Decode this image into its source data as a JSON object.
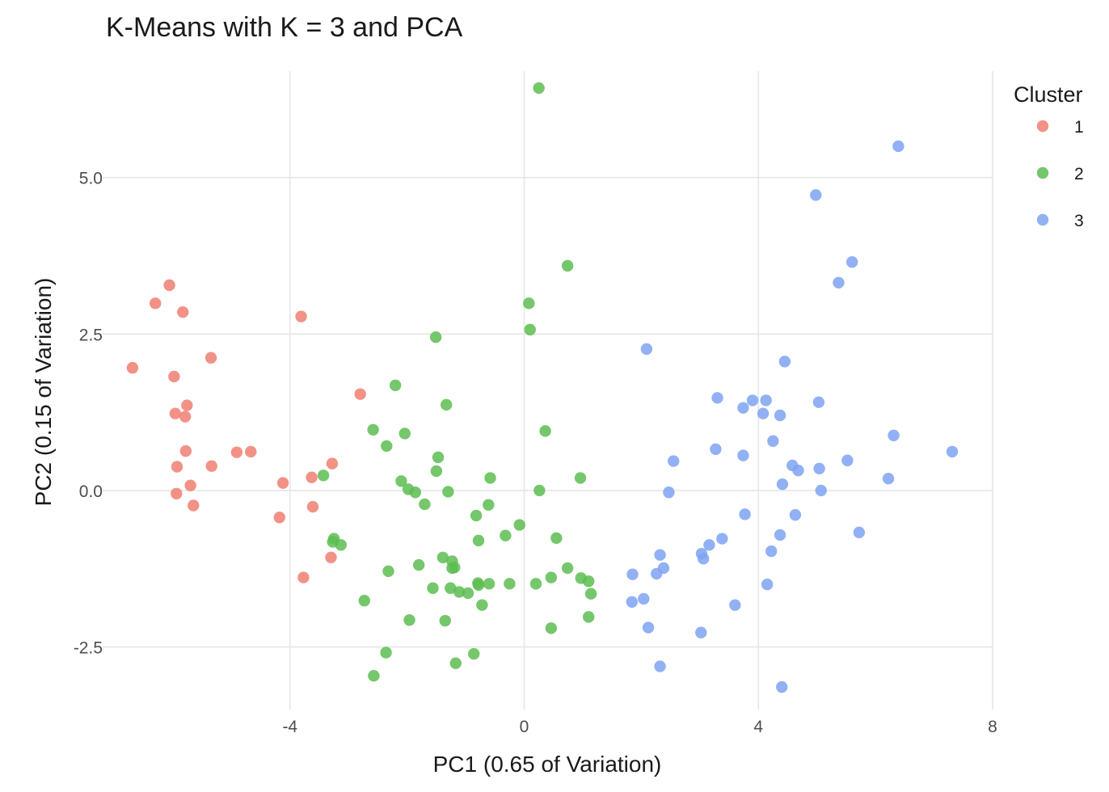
{
  "chart_data": {
    "type": "scatter",
    "title": "K-Means with K = 3 and PCA",
    "xlabel": "PC1 (0.65 of Variation)",
    "ylabel": "PC2 (0.15 of Variation)",
    "xlim": [
      -7.2,
      8.0
    ],
    "ylim": [
      -3.5,
      6.7
    ],
    "x_ticks": [
      -4,
      0,
      4,
      8
    ],
    "x_tick_labels": [
      "-4",
      "0",
      "4",
      "8"
    ],
    "y_ticks": [
      -2.5,
      0.0,
      2.5,
      5.0
    ],
    "y_tick_labels": [
      "-2.5",
      "0.0",
      "2.5",
      "5.0"
    ],
    "grid": true,
    "legend": {
      "title": "Cluster",
      "position": "right"
    },
    "series": [
      {
        "name": "1",
        "color": "#F07F72",
        "points": [
          [
            -6.06,
            3.28
          ],
          [
            -6.3,
            2.99
          ],
          [
            -5.83,
            2.85
          ],
          [
            -3.81,
            2.78
          ],
          [
            -6.69,
            1.96
          ],
          [
            -5.35,
            2.12
          ],
          [
            -5.98,
            1.82
          ],
          [
            -2.8,
            1.54
          ],
          [
            -5.96,
            1.23
          ],
          [
            -5.76,
            1.36
          ],
          [
            -5.79,
            1.18
          ],
          [
            -5.78,
            0.63
          ],
          [
            -4.91,
            0.61
          ],
          [
            -4.67,
            0.62
          ],
          [
            -5.93,
            0.38
          ],
          [
            -5.34,
            0.39
          ],
          [
            -3.28,
            0.43
          ],
          [
            -3.63,
            0.21
          ],
          [
            -4.12,
            0.12
          ],
          [
            -5.7,
            0.08
          ],
          [
            -5.94,
            -0.05
          ],
          [
            -5.65,
            -0.24
          ],
          [
            -3.61,
            -0.26
          ],
          [
            -4.18,
            -0.43
          ],
          [
            -3.3,
            -1.07
          ],
          [
            -3.77,
            -1.39
          ]
        ]
      },
      {
        "name": "2",
        "color": "#5DBD51",
        "points": [
          [
            0.25,
            6.43
          ],
          [
            0.74,
            3.59
          ],
          [
            0.08,
            2.99
          ],
          [
            0.1,
            2.57
          ],
          [
            -1.51,
            2.45
          ],
          [
            -2.2,
            1.68
          ],
          [
            -1.33,
            1.37
          ],
          [
            -2.58,
            0.97
          ],
          [
            -2.04,
            0.91
          ],
          [
            0.36,
            0.95
          ],
          [
            -2.35,
            0.71
          ],
          [
            -1.47,
            0.53
          ],
          [
            -1.5,
            0.31
          ],
          [
            -3.43,
            0.24
          ],
          [
            -0.58,
            0.2
          ],
          [
            0.96,
            0.2
          ],
          [
            -2.1,
            0.15
          ],
          [
            -1.98,
            0.02
          ],
          [
            -1.86,
            -0.03
          ],
          [
            -1.3,
            -0.02
          ],
          [
            0.26,
            0.0
          ],
          [
            -1.7,
            -0.22
          ],
          [
            -0.61,
            -0.23
          ],
          [
            -0.82,
            -0.4
          ],
          [
            -0.08,
            -0.55
          ],
          [
            -0.32,
            -0.72
          ],
          [
            -3.25,
            -0.77
          ],
          [
            -3.27,
            -0.82
          ],
          [
            -3.13,
            -0.87
          ],
          [
            -0.78,
            -0.8
          ],
          [
            0.55,
            -0.76
          ],
          [
            -1.39,
            -1.07
          ],
          [
            -1.23,
            -1.13
          ],
          [
            -1.8,
            -1.19
          ],
          [
            -1.19,
            -1.23
          ],
          [
            -1.23,
            -1.24
          ],
          [
            0.74,
            -1.24
          ],
          [
            -2.32,
            -1.29
          ],
          [
            0.46,
            -1.39
          ],
          [
            0.97,
            -1.4
          ],
          [
            1.1,
            -1.45
          ],
          [
            -0.79,
            -1.48
          ],
          [
            -0.25,
            -1.49
          ],
          [
            0.2,
            -1.49
          ],
          [
            -0.6,
            -1.49
          ],
          [
            -0.78,
            -1.51
          ],
          [
            -1.56,
            -1.56
          ],
          [
            -1.26,
            -1.56
          ],
          [
            -1.11,
            -1.62
          ],
          [
            -0.96,
            -1.64
          ],
          [
            1.14,
            -1.65
          ],
          [
            -2.73,
            -1.76
          ],
          [
            -0.72,
            -1.83
          ],
          [
            1.1,
            -2.02
          ],
          [
            -1.96,
            -2.07
          ],
          [
            -1.35,
            -2.08
          ],
          [
            0.46,
            -2.2
          ],
          [
            -2.36,
            -2.59
          ],
          [
            -0.86,
            -2.61
          ],
          [
            -1.17,
            -2.76
          ],
          [
            -2.57,
            -2.96
          ]
        ]
      },
      {
        "name": "3",
        "color": "#7FA3F2",
        "points": [
          [
            6.39,
            5.5
          ],
          [
            4.98,
            4.72
          ],
          [
            5.6,
            3.65
          ],
          [
            5.37,
            3.32
          ],
          [
            2.09,
            2.26
          ],
          [
            4.45,
            2.06
          ],
          [
            3.3,
            1.48
          ],
          [
            3.9,
            1.44
          ],
          [
            4.13,
            1.44
          ],
          [
            5.03,
            1.41
          ],
          [
            3.74,
            1.32
          ],
          [
            4.08,
            1.23
          ],
          [
            4.37,
            1.2
          ],
          [
            6.31,
            0.88
          ],
          [
            4.25,
            0.79
          ],
          [
            3.27,
            0.66
          ],
          [
            3.74,
            0.56
          ],
          [
            7.31,
            0.62
          ],
          [
            2.55,
            0.47
          ],
          [
            5.52,
            0.48
          ],
          [
            4.58,
            0.4
          ],
          [
            4.68,
            0.32
          ],
          [
            5.04,
            0.35
          ],
          [
            6.22,
            0.19
          ],
          [
            4.41,
            0.1
          ],
          [
            2.47,
            -0.03
          ],
          [
            5.07,
            0.0
          ],
          [
            3.77,
            -0.38
          ],
          [
            4.63,
            -0.39
          ],
          [
            5.72,
            -0.67
          ],
          [
            4.37,
            -0.71
          ],
          [
            3.38,
            -0.77
          ],
          [
            3.16,
            -0.87
          ],
          [
            3.03,
            -1.01
          ],
          [
            2.32,
            -1.03
          ],
          [
            3.06,
            -1.09
          ],
          [
            4.22,
            -0.97
          ],
          [
            2.38,
            -1.24
          ],
          [
            2.26,
            -1.33
          ],
          [
            1.85,
            -1.34
          ],
          [
            4.15,
            -1.5
          ],
          [
            2.04,
            -1.73
          ],
          [
            1.84,
            -1.78
          ],
          [
            3.6,
            -1.83
          ],
          [
            2.12,
            -2.19
          ],
          [
            3.02,
            -2.27
          ],
          [
            2.32,
            -2.81
          ],
          [
            4.4,
            -3.14
          ]
        ]
      }
    ]
  }
}
